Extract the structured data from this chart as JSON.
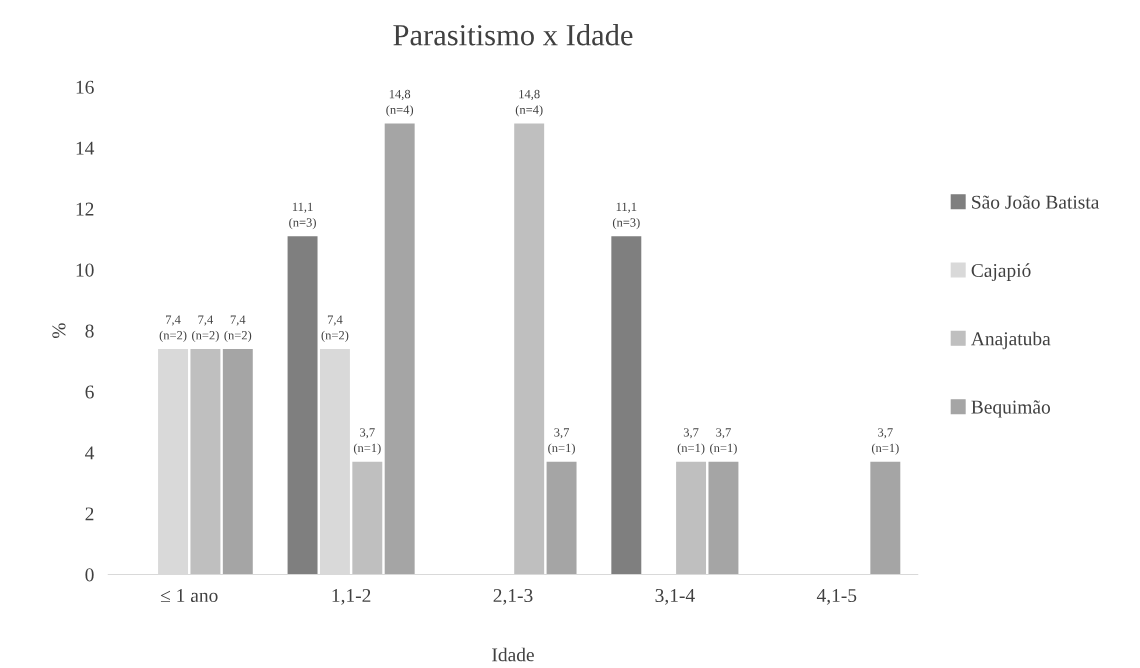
{
  "chart_data": {
    "type": "bar",
    "title": "Parasitismo x Idade",
    "xlabel": "Idade",
    "ylabel": "%",
    "categories": [
      "≤ 1 ano",
      "1,1-2",
      "2,1-3",
      "3,1-4",
      "4,1-5"
    ],
    "series": [
      {
        "name": "São João Batista",
        "color": "#7f7f7f",
        "values": [
          null,
          11.1,
          null,
          11.1,
          null
        ],
        "value_labels": [
          null,
          "11,1\n(n=3)",
          null,
          "11,1\n(n=3)",
          null
        ]
      },
      {
        "name": "Cajapió",
        "color": "#d9d9d9",
        "values": [
          7.4,
          7.4,
          null,
          null,
          null
        ],
        "value_labels": [
          "7,4\n(n=2)",
          "7,4\n(n=2)",
          null,
          null,
          null
        ]
      },
      {
        "name": "Anajatuba",
        "color": "#bfbfbf",
        "values": [
          7.4,
          3.7,
          14.8,
          3.7,
          null
        ],
        "value_labels": [
          "7,4\n(n=2)",
          "3,7\n(n=1)",
          "14,8\n(n=4)",
          "3,7\n(n=1)",
          null
        ]
      },
      {
        "name": "Bequimão",
        "color": "#a5a5a5",
        "values": [
          7.4,
          14.8,
          3.7,
          3.7,
          3.7
        ],
        "value_labels": [
          "7,4\n(n=2)",
          "14,8\n(n=4)",
          "3,7\n(n=1)",
          "3,7\n(n=1)",
          "3,7\n(n=1)"
        ]
      }
    ],
    "ylim": [
      0,
      16
    ],
    "yticks": [
      0,
      2,
      4,
      6,
      8,
      10,
      12,
      14,
      16
    ],
    "grid": false,
    "legend": "right"
  }
}
